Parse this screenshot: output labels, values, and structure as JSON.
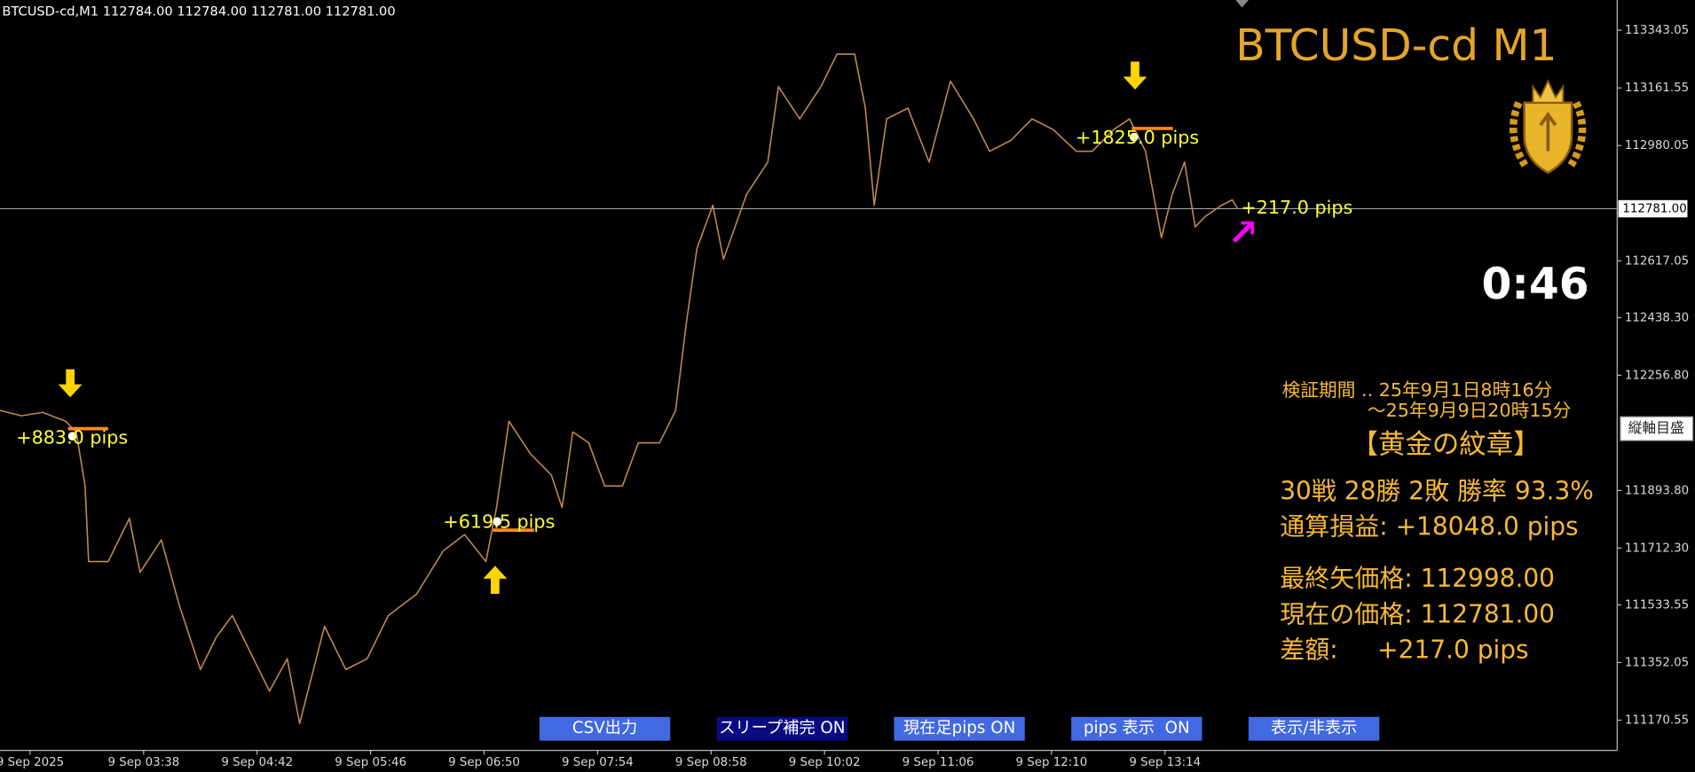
{
  "header": "BTCUSD-cd,M1  112784.00 112784.00 112781.00 112781.00",
  "overlay": {
    "title": "BTCUSD-cd M1",
    "timer": "0:46",
    "pips_labels": [
      "+883.0 pips",
      "+619.5 pips",
      "+1825.0 pips",
      "+217.0 pips"
    ],
    "axis_button": "縦軸目盛",
    "panel": [
      "検証期間 .. 25年9月1日8時16分",
      "～25年9月9日20時15分",
      "【黄金の紋章】",
      "30戦 28勝 2敗  勝率 93.3%",
      "通算損益:  +18048.0 pips",
      "最終矢価格: 112998.00",
      "現在の価格: 112781.00",
      "差額:     +217.0 pips"
    ],
    "buttons": [
      "CSV出力",
      "スリープ補完 ON",
      "現在足pips ON",
      "pips 表示  ON",
      "表示/非表示"
    ]
  },
  "chart_data": {
    "type": "line",
    "xlim": [
      137,
      1049
    ],
    "ylim": [
      111075.4,
      113438.3
    ],
    "xticks": [
      {
        "value": 154,
        "label": "9 Sep 2025"
      },
      {
        "value": 218,
        "label": "9 Sep 03:38"
      },
      {
        "value": 282,
        "label": "9 Sep 04:42"
      },
      {
        "value": 346,
        "label": "9 Sep 05:46"
      },
      {
        "value": 410,
        "label": "9 Sep 06:50"
      },
      {
        "value": 474,
        "label": "9 Sep 07:54"
      },
      {
        "value": 538,
        "label": "9 Sep 08:58"
      },
      {
        "value": 602,
        "label": "9 Sep 10:02"
      },
      {
        "value": 666,
        "label": "9 Sep 11:06"
      },
      {
        "value": 730,
        "label": "9 Sep 12:10"
      },
      {
        "value": 794,
        "label": "9 Sep 13:14"
      }
    ],
    "yticks": [
      113343.05,
      113161.55,
      112980.05,
      112617.05,
      {
        "value": 112438.3,
        "label": "112438.30"
      },
      {
        "value": 112256.8,
        "label": "112256.80"
      },
      {
        "value": 111893.8,
        "label": "111893.80"
      },
      {
        "value": 111712.3,
        "label": "111712.30"
      },
      111533.55,
      111352.05,
      111170.55
    ],
    "price_line": {
      "value": 112781,
      "label": "112781.00"
    },
    "x": [
      137,
      149,
      161,
      174,
      180,
      185,
      187,
      198,
      210,
      216,
      228,
      238,
      250,
      259,
      268,
      277,
      289,
      299,
      306,
      320,
      332,
      344,
      356,
      372,
      387,
      399,
      411,
      417,
      424,
      436,
      448,
      454,
      460,
      469,
      478,
      488,
      497,
      509,
      518,
      524,
      530,
      539,
      545,
      558,
      570,
      576,
      588,
      600,
      609,
      619,
      625,
      630,
      637,
      649,
      661,
      673,
      686,
      695,
      707,
      719,
      731,
      744,
      753,
      765,
      774,
      783,
      792,
      798,
      805,
      811,
      817,
      826,
      832,
      835
    ],
    "series": [
      {
        "color": "#c0894a",
        "values": [
          112146,
          112129,
          112140,
          112112,
          112078,
          111908,
          111670,
          111670,
          111806,
          111636,
          111738,
          111534,
          111330,
          111432,
          111500,
          111398,
          111262,
          111364,
          111160,
          111466,
          111330,
          111364,
          111500,
          111568,
          111704,
          111755,
          111670,
          111840,
          112112,
          112010,
          111942,
          111840,
          112078,
          112044,
          111908,
          111908,
          112044,
          112044,
          112146,
          112418,
          112656,
          112792,
          112622,
          112826,
          112928,
          113166,
          113064,
          113166,
          113268,
          113268,
          113098,
          112792,
          113064,
          113098,
          112928,
          113183,
          113064,
          112962,
          112996,
          113064,
          113030,
          112962,
          112962,
          113030,
          113064,
          112962,
          112690,
          112826,
          112928,
          112724,
          112758,
          112792,
          112809,
          112781
        ]
      }
    ]
  }
}
